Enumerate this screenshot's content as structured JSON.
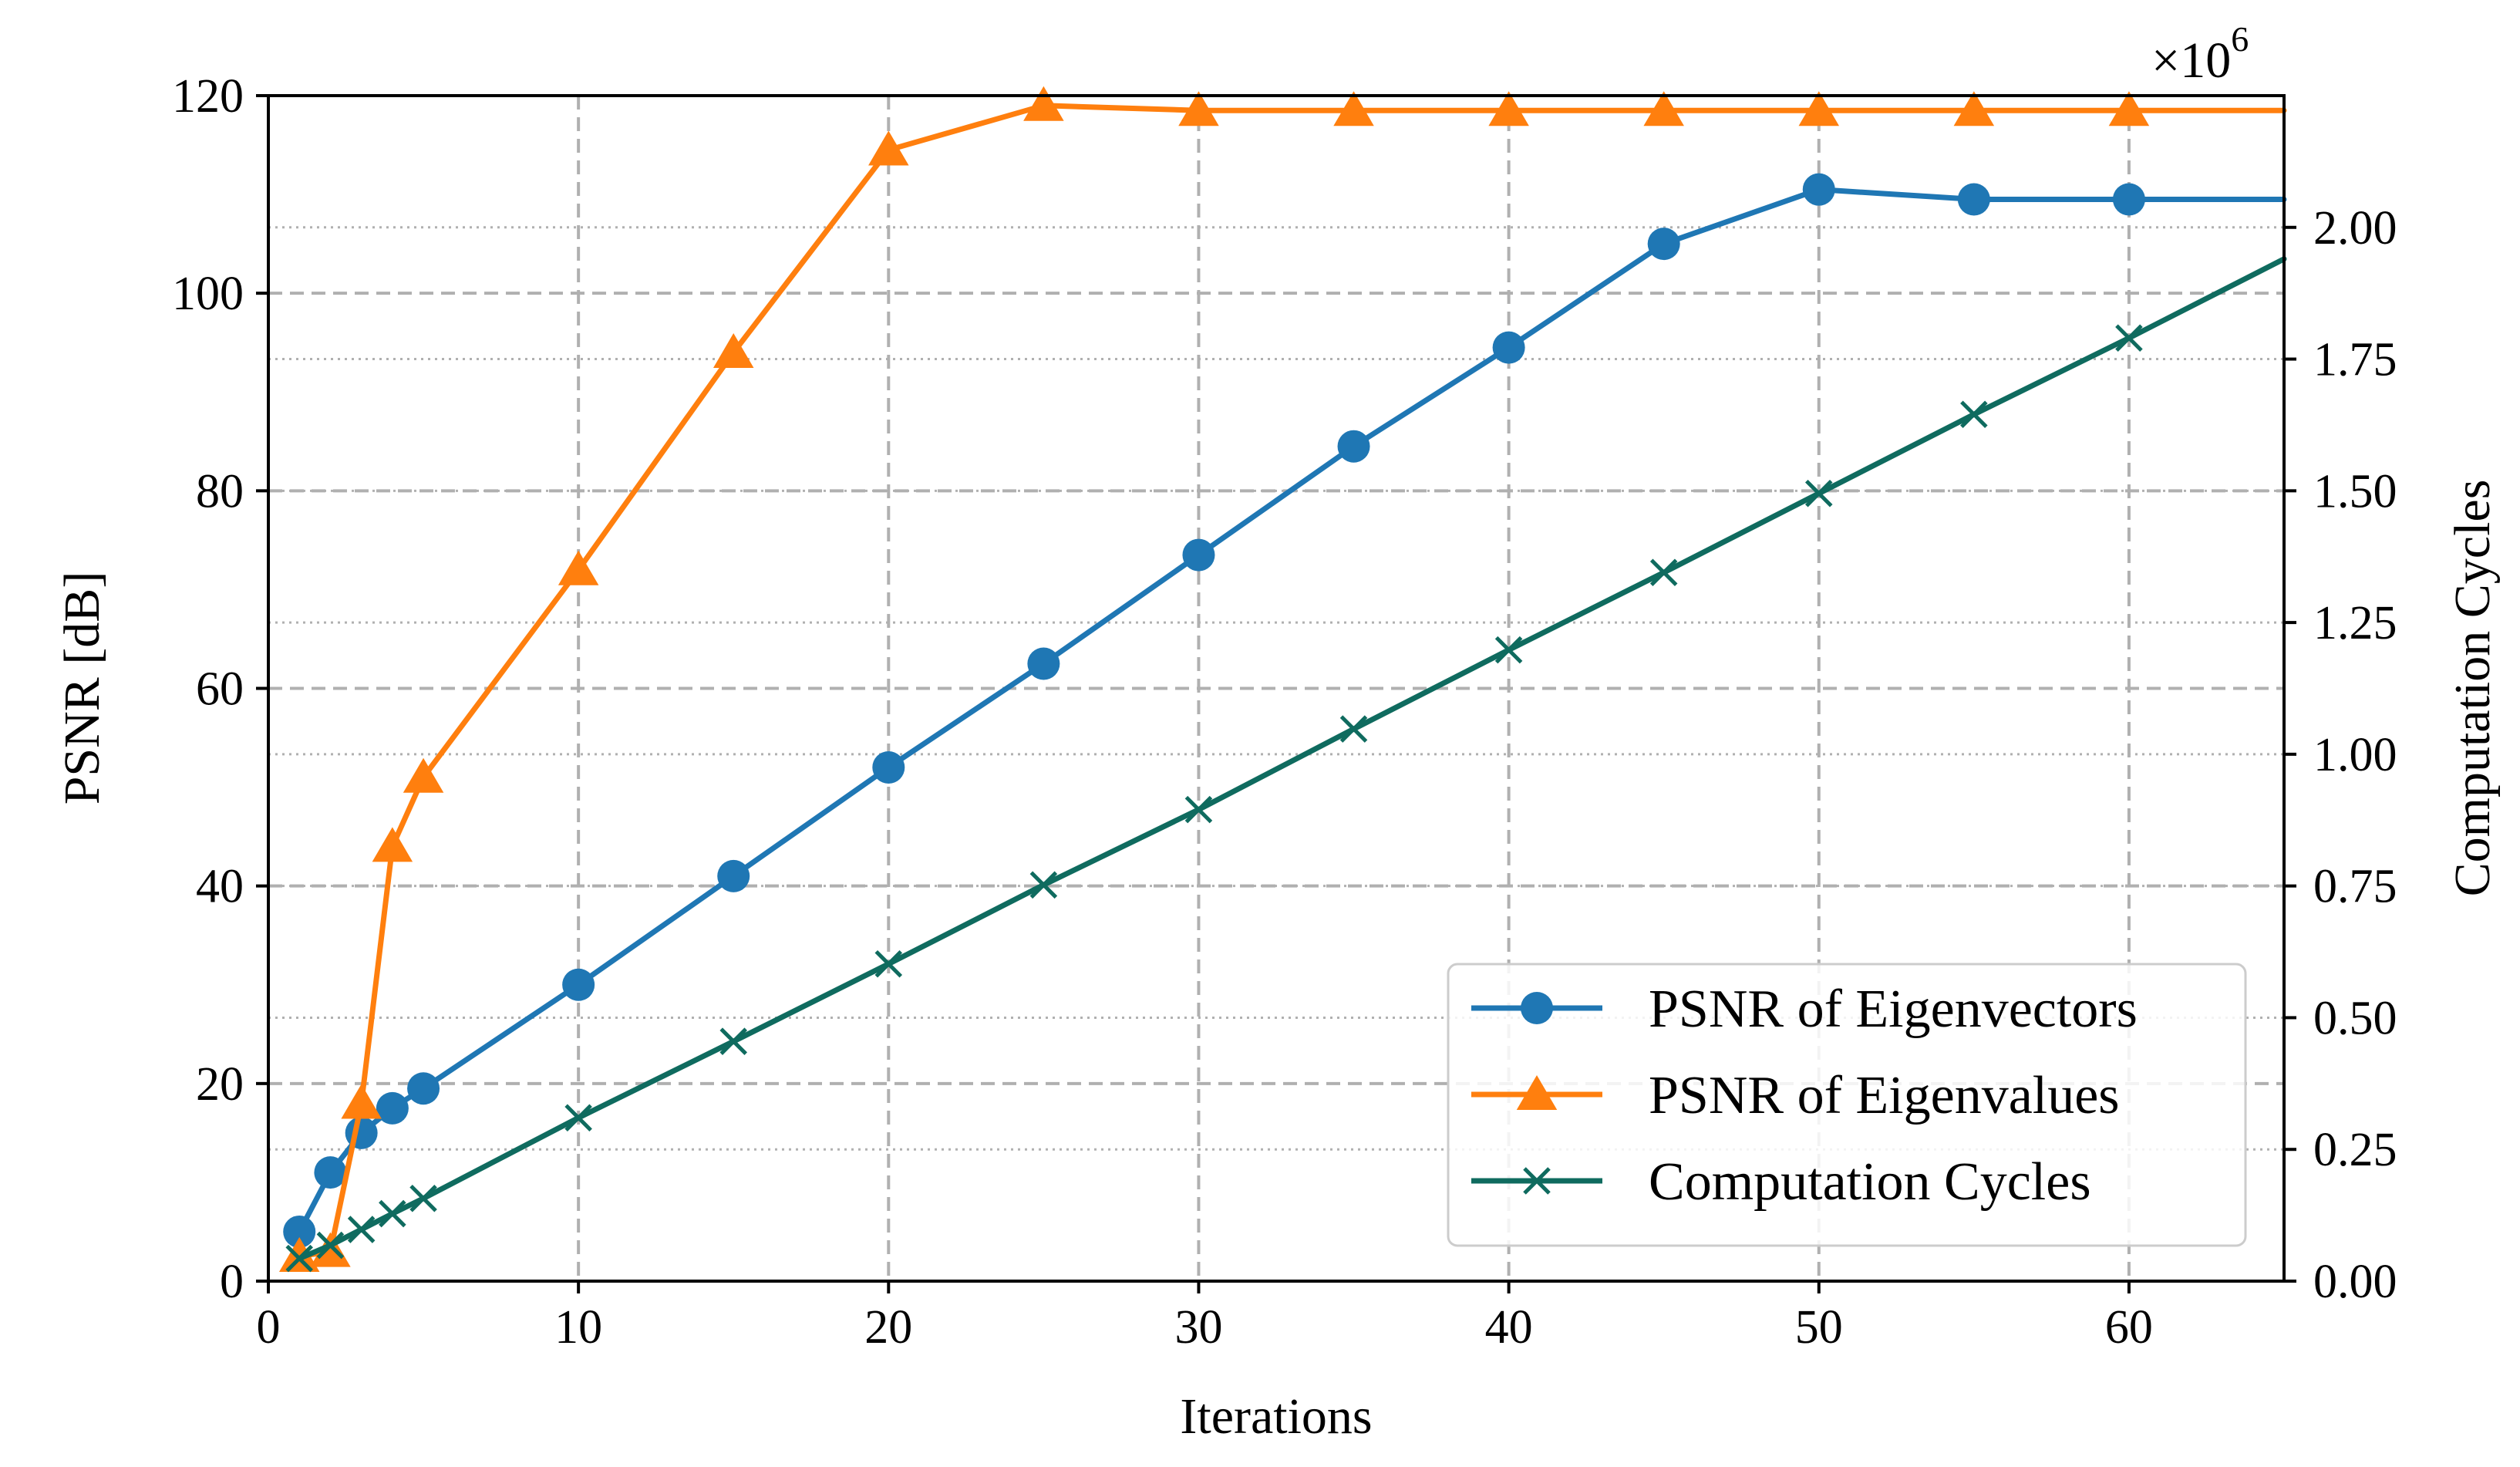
{
  "chart_data": {
    "type": "line",
    "title": "",
    "xlabel": "Iterations",
    "ylabel_left": "PSNR [dB]",
    "ylabel_right": "Computation Cycles",
    "right_axis_multiplier": "×10",
    "right_axis_exponent": "6",
    "xlim": [
      0,
      65
    ],
    "ylim_left": [
      0,
      120
    ],
    "ylim_right": [
      0,
      2.25
    ],
    "x_ticks": [
      0,
      10,
      20,
      30,
      40,
      50,
      60
    ],
    "y_left_ticks": [
      0,
      20,
      40,
      60,
      80,
      100,
      120
    ],
    "y_right_ticks": [
      "0.00",
      "0.25",
      "0.50",
      "0.75",
      "1.00",
      "1.25",
      "1.50",
      "1.75",
      "2.00"
    ],
    "grid": {
      "major_dashed": true,
      "right_axis_dotted": true
    },
    "legend_position": "lower-right",
    "series": [
      {
        "name": "PSNR of Eigenvectors",
        "axis": "left",
        "color": "#1f77b4",
        "marker": "circle",
        "x": [
          1,
          2,
          3,
          4,
          5,
          10,
          15,
          20,
          25,
          30,
          35,
          40,
          45,
          50,
          55,
          60,
          65
        ],
        "values": [
          5,
          11,
          15,
          17.5,
          19.5,
          30,
          41,
          52,
          62.5,
          73.5,
          84.5,
          94.5,
          105,
          110.5,
          109.5,
          109.5,
          109.5
        ],
        "marker_x": [
          1,
          2,
          3,
          4,
          5,
          10,
          15,
          20,
          25,
          30,
          35,
          40,
          45,
          50,
          55,
          60
        ]
      },
      {
        "name": "PSNR of Eigenvalues",
        "axis": "left",
        "color": "#ff7f0e",
        "marker": "triangle",
        "x": [
          1,
          2,
          3,
          4,
          5,
          10,
          15,
          20,
          25,
          30,
          35,
          40,
          45,
          50,
          55,
          60,
          65
        ],
        "values": [
          2.5,
          3,
          18,
          44,
          51,
          72,
          94,
          114.5,
          119,
          118.5,
          118.5,
          118.5,
          118.5,
          118.5,
          118.5,
          118.5,
          118.5
        ],
        "marker_x": [
          1,
          2,
          3,
          4,
          5,
          10,
          15,
          20,
          25,
          30,
          35,
          40,
          45,
          50,
          55,
          60
        ]
      },
      {
        "name": "Computation Cycles",
        "axis": "right",
        "color": "#0f6b5f",
        "marker": "x",
        "x": [
          1,
          2,
          3,
          4,
          5,
          10,
          15,
          20,
          25,
          30,
          35,
          40,
          45,
          50,
          55,
          60,
          65
        ],
        "values": [
          0.043,
          0.068,
          0.098,
          0.128,
          0.157,
          0.31,
          0.455,
          0.602,
          0.752,
          0.895,
          1.048,
          1.198,
          1.345,
          1.495,
          1.645,
          1.79,
          1.94
        ],
        "marker_x": [
          1,
          2,
          3,
          4,
          5,
          10,
          15,
          20,
          25,
          30,
          35,
          40,
          45,
          50,
          55,
          60
        ]
      }
    ]
  }
}
